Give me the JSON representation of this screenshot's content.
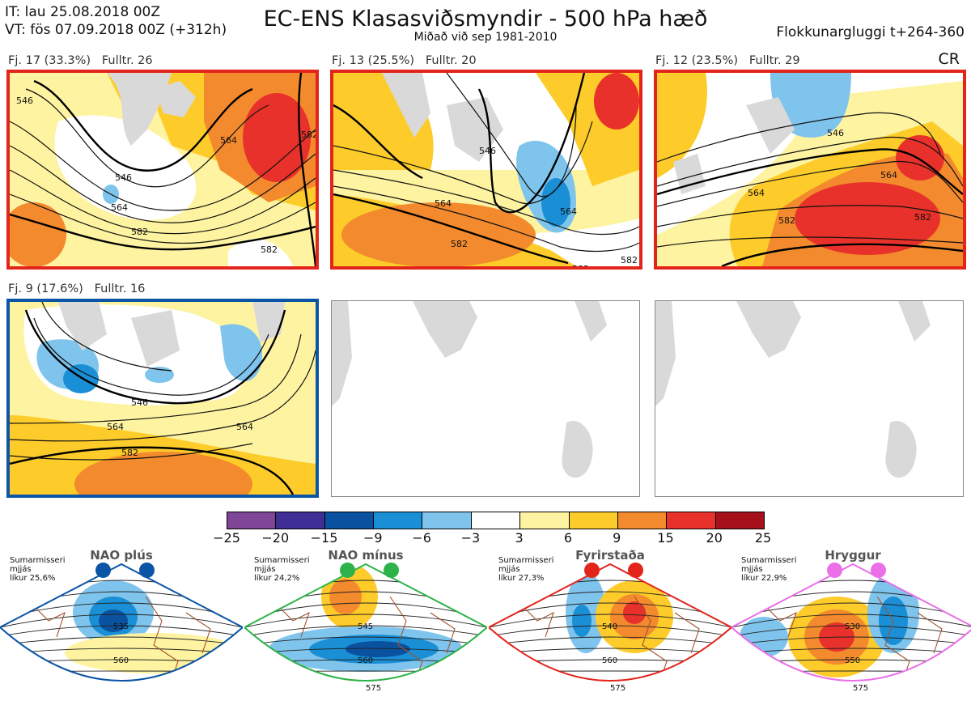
{
  "header": {
    "it_line": "IT: lau 25.08.2018 00Z",
    "vt_line": "VT: fös 07.09.2018 00Z  (+312h)",
    "title": "EC-ENS Klasasviðsmyndir - 500 hPa hæð",
    "subtitle": "Miðað við sep 1981-2010",
    "window": "Flokkunargluggi t+264-360",
    "corner": "CR"
  },
  "clusters": [
    {
      "label": "Fj. 17 (33.3%)   Fulltr. 26",
      "border_color": "#e3241b",
      "contour_labels": [
        "546",
        "546",
        "564",
        "564",
        "582",
        "582",
        "582"
      ]
    },
    {
      "label": "Fj. 13 (25.5%)   Fulltr. 20",
      "border_color": "#e3241b",
      "contour_labels": [
        "564",
        "582",
        "546",
        "564",
        "582",
        "582"
      ]
    },
    {
      "label": "Fj. 12 (23.5%)   Fulltr. 29",
      "border_color": "#e3241b",
      "contour_labels": [
        "546",
        "564",
        "564",
        "582",
        "582"
      ]
    },
    {
      "label": "Fj. 9 (17.6%)   Fulltr. 16",
      "border_color": "#0a55a5",
      "contour_labels": [
        "546",
        "564",
        "582",
        "564"
      ]
    }
  ],
  "colorbar": {
    "ticks": [
      "−25",
      "−20",
      "−15",
      "−9",
      "−6",
      "−3",
      "3",
      "6",
      "9",
      "15",
      "20",
      "25"
    ],
    "colors": [
      "#7f4597",
      "#3f2e96",
      "#0a52a0",
      "#1a8fd6",
      "#7fc4ec",
      "#ffffff",
      "#fef3a0",
      "#fdcc2a",
      "#f38a2d",
      "#e8312a",
      "#a5101b"
    ]
  },
  "regimes": [
    {
      "title": "NAO plús",
      "meta": [
        "Sumarmisseri",
        "mjjás",
        "líkur 25,6%"
      ],
      "color": "#0a55a5",
      "contours": [
        "535",
        "560"
      ]
    },
    {
      "title": "NAO mínus",
      "meta": [
        "Sumarmisseri",
        "mjjás",
        "líkur 24,2%"
      ],
      "color": "#2db34a",
      "contours": [
        "545",
        "560",
        "575"
      ]
    },
    {
      "title": "Fyrirstaða",
      "meta": [
        "Sumarmisseri",
        "mjjás",
        "líkur 27,3%"
      ],
      "color": "#e3241b",
      "contours": [
        "540",
        "560",
        "575"
      ]
    },
    {
      "title": "Hryggur",
      "meta": [
        "Sumarmisseri",
        "mjjás",
        "líkur 22,9%"
      ],
      "color": "#ea6fe8",
      "contours": [
        "530",
        "550",
        "575"
      ]
    }
  ]
}
